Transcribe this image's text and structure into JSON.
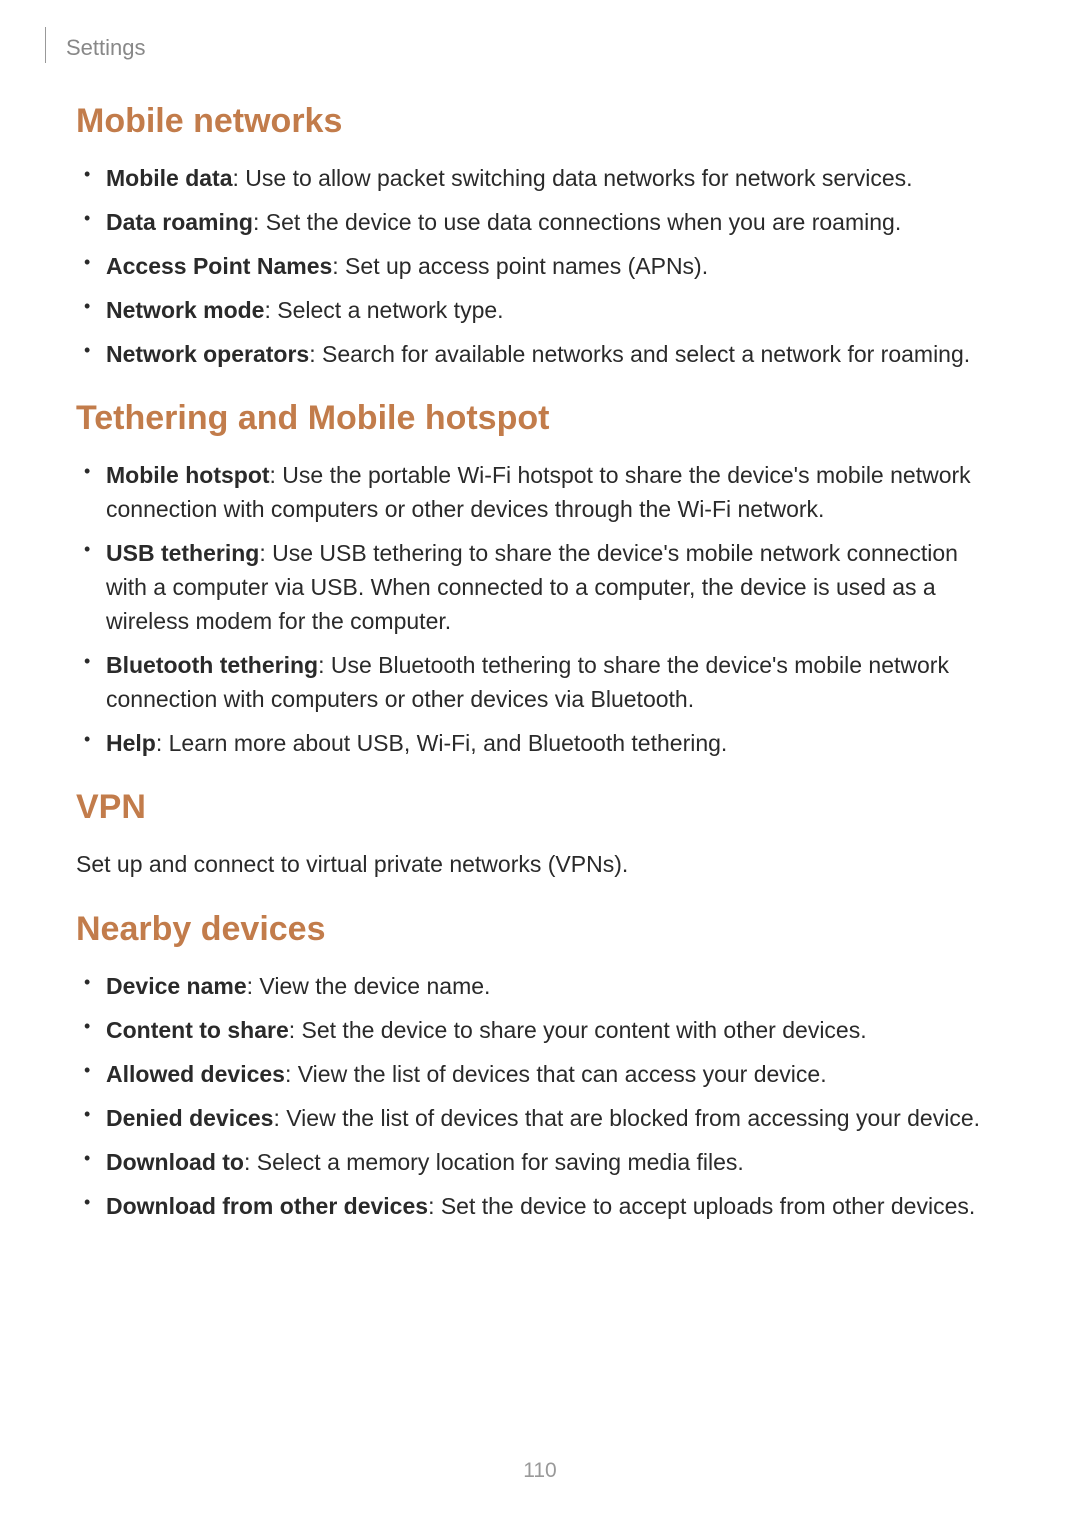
{
  "header": {
    "breadcrumb": "Settings"
  },
  "sections": {
    "mobile_networks": {
      "heading": "Mobile networks",
      "items": [
        {
          "term": "Mobile data",
          "desc": ": Use to allow packet switching data networks for network services."
        },
        {
          "term": "Data roaming",
          "desc": ": Set the device to use data connections when you are roaming."
        },
        {
          "term": "Access Point Names",
          "desc": ": Set up access point names (APNs)."
        },
        {
          "term": "Network mode",
          "desc": ": Select a network type."
        },
        {
          "term": "Network operators",
          "desc": ": Search for available networks and select a network for roaming."
        }
      ]
    },
    "tethering": {
      "heading": "Tethering and Mobile hotspot",
      "items": [
        {
          "term": "Mobile hotspot",
          "desc": ": Use the portable Wi-Fi hotspot to share the device's mobile network connection with computers or other devices through the Wi-Fi network."
        },
        {
          "term": "USB tethering",
          "desc": ": Use USB tethering to share the device's mobile network connection with a computer via USB. When connected to a computer, the device is used as a wireless modem for the computer."
        },
        {
          "term": "Bluetooth tethering",
          "desc": ": Use Bluetooth tethering to share the device's mobile network connection with computers or other devices via Bluetooth."
        },
        {
          "term": "Help",
          "desc": ": Learn more about USB, Wi-Fi, and Bluetooth tethering."
        }
      ]
    },
    "vpn": {
      "heading": "VPN",
      "body": "Set up and connect to virtual private networks (VPNs)."
    },
    "nearby": {
      "heading": "Nearby devices",
      "items": [
        {
          "term": "Device name",
          "desc": ": View the device name."
        },
        {
          "term": "Content to share",
          "desc": ": Set the device to share your content with other devices."
        },
        {
          "term": "Allowed devices",
          "desc": ": View the list of devices that can access your device."
        },
        {
          "term": "Denied devices",
          "desc": ": View the list of devices that are blocked from accessing your device."
        },
        {
          "term": "Download to",
          "desc": ": Select a memory location for saving media files."
        },
        {
          "term": "Download from other devices",
          "desc": ": Set the device to accept uploads from other devices."
        }
      ]
    }
  },
  "page_number": "110",
  "colors": {
    "heading": "#c27c4b",
    "body": "#2a2a2a",
    "muted": "#888888",
    "background": "#ffffff"
  },
  "typography": {
    "heading_fontsize": 34,
    "body_fontsize": 23,
    "header_fontsize": 22,
    "page_number_fontsize": 21
  }
}
